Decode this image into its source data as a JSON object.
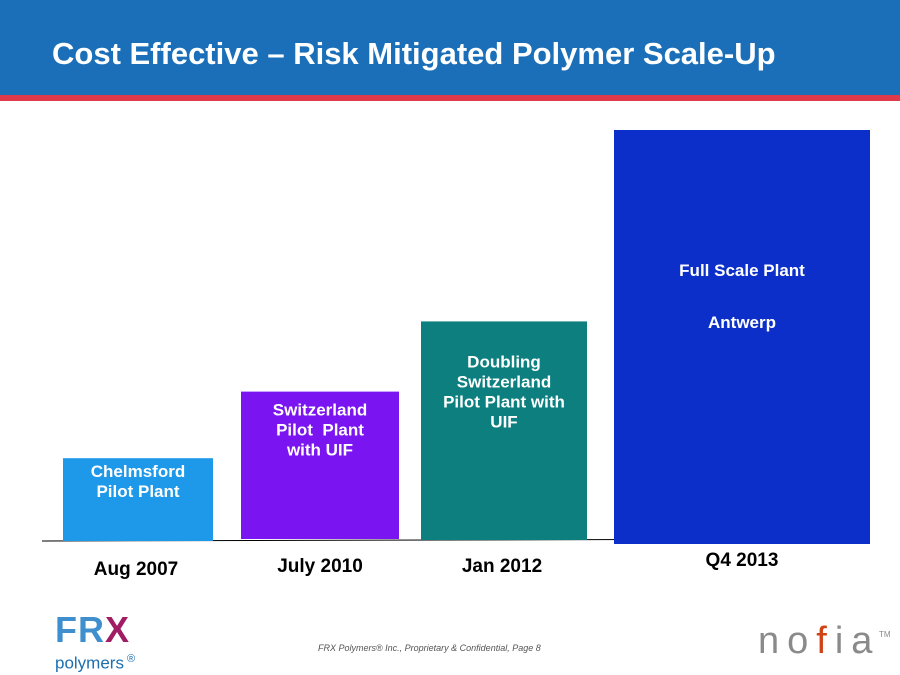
{
  "header": {
    "title": "Cost Effective – Risk Mitigated Polymer Scale-Up",
    "background_color": "#1a6fb8",
    "stripe_color": "#e03a4a"
  },
  "chart_data": {
    "type": "bar",
    "title": "Cost Effective – Risk Mitigated Polymer Scale-Up",
    "categories": [
      "Aug 2007",
      "July 2010",
      "Jan 2012",
      "Q4 2013"
    ],
    "values": [
      1.0,
      1.78,
      2.64,
      5.0
    ],
    "bar_labels": [
      [
        "Chelmsford",
        "Pilot Plant"
      ],
      [
        "Switzerland",
        "Pilot  Plant",
        "with UIF"
      ],
      [
        "Doubling",
        "Switzerland",
        "Pilot Plant with",
        "UIF"
      ],
      [
        "Full Scale Plant",
        "",
        "Antwerp"
      ]
    ],
    "colors": [
      "#1e98e8",
      "#7a14f0",
      "#0d7f7f",
      "#0b2fc8"
    ],
    "xlabel": "",
    "ylabel": "",
    "ylim": [
      0,
      5.0
    ],
    "grid": false,
    "legend": "none"
  },
  "footer": {
    "logo_frx": "FRX",
    "logo_polymers": "polymers",
    "logo_reg": "®",
    "text": "FRX Polymers® Inc., Proprietary & Confidential,   Page 8",
    "nofia_logo": "nofia",
    "nofia_tm": "TM"
  }
}
